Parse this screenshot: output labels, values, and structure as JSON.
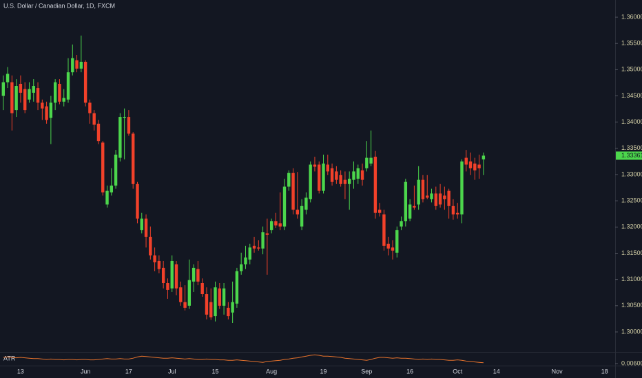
{
  "chart_data": [
    {
      "type": "candlestick",
      "title": "U.S. Dollar / Canadian Dollar, 1D, FXCM",
      "up_color": "#4cd64c",
      "down_color": "#f2412a",
      "grid": false,
      "ylim": [
        1.29646,
        1.36328
      ],
      "yticks": [
        {
          "value": 1.3,
          "label": "1.30000"
        },
        {
          "value": 1.305,
          "label": "1.30500"
        },
        {
          "value": 1.31,
          "label": "1.31000"
        },
        {
          "value": 1.315,
          "label": "1.31500"
        },
        {
          "value": 1.32,
          "label": "1.32000"
        },
        {
          "value": 1.325,
          "label": "1.32500"
        },
        {
          "value": 1.33,
          "label": "1.33000"
        },
        {
          "value": 1.335,
          "label": "1.33500"
        },
        {
          "value": 1.34,
          "label": "1.34000"
        },
        {
          "value": 1.345,
          "label": "1.34500"
        },
        {
          "value": 1.35,
          "label": "1.35000"
        },
        {
          "value": 1.355,
          "label": "1.35500"
        },
        {
          "value": 1.36,
          "label": "1.36000"
        }
      ],
      "categories": [
        null,
        null,
        null,
        null,
        "13",
        null,
        null,
        null,
        null,
        null,
        null,
        null,
        null,
        null,
        null,
        null,
        null,
        null,
        null,
        "Jun",
        null,
        null,
        null,
        null,
        null,
        null,
        null,
        null,
        null,
        "17",
        null,
        null,
        null,
        null,
        null,
        null,
        null,
        null,
        null,
        "Jul",
        null,
        null,
        null,
        null,
        null,
        null,
        null,
        null,
        null,
        "15",
        null,
        null,
        null,
        null,
        null,
        null,
        null,
        null,
        null,
        null,
        null,
        null,
        "Aug",
        null,
        null,
        null,
        null,
        null,
        null,
        null,
        null,
        null,
        null,
        null,
        "19",
        null,
        null,
        null,
        null,
        null,
        null,
        null,
        null,
        null,
        "Sep",
        null,
        null,
        null,
        null,
        null,
        null,
        null,
        null,
        null,
        "16",
        null,
        null,
        null,
        null,
        null,
        null,
        null,
        null,
        null,
        null,
        "Oct",
        null,
        null,
        null,
        null,
        null,
        null,
        null,
        null,
        "14",
        null,
        null,
        null,
        null,
        null,
        null,
        null,
        null,
        null,
        null,
        null,
        null,
        null,
        "Nov",
        null,
        null,
        null,
        null,
        null,
        null,
        null,
        null,
        null,
        null,
        "18",
        null,
        null
      ],
      "open": [
        1.345,
        1.3476,
        1.3476,
        1.3423,
        1.3473,
        1.3463,
        1.3443,
        1.3456,
        1.3465,
        1.3437,
        1.343,
        1.3408,
        1.3437,
        1.3473,
        1.3439,
        1.3443,
        1.3495,
        1.3518,
        1.3502,
        1.3515,
        1.3437,
        1.3417,
        1.3397,
        1.3361,
        1.3243,
        1.3266,
        1.3279,
        1.3332,
        1.3408,
        1.341,
        1.3378,
        1.3282,
        1.3194,
        1.3216,
        1.3181,
        1.3146,
        1.3135,
        1.3122,
        1.3093,
        1.3083,
        1.3129,
        1.3085,
        1.3057,
        1.305,
        1.3096,
        1.312,
        1.3093,
        1.3072,
        1.3057,
        1.303,
        1.3083,
        1.305,
        1.3046,
        1.3037,
        1.3054,
        1.3116,
        1.3129,
        1.3138,
        1.3164,
        1.3161,
        1.3159,
        1.3188,
        1.3194,
        1.3211,
        1.3207,
        1.3201,
        1.3277,
        1.3303,
        1.3233,
        1.3201,
        1.3233,
        1.3253,
        1.3319,
        1.3319,
        1.3269,
        1.3319,
        1.3312,
        1.3306,
        1.3299,
        1.329,
        1.3282,
        1.329,
        1.3292,
        1.3308,
        1.3312,
        1.3321,
        1.3334,
        1.3233,
        1.3224,
        1.3168,
        1.3161,
        1.3151,
        1.3201,
        1.3211,
        1.3216,
        1.324,
        1.3243,
        1.329,
        1.326,
        1.3253,
        1.3264,
        1.3264,
        1.326,
        1.3269,
        1.324,
        1.3227,
        1.3224,
        1.3332,
        1.3325,
        1.3321,
        1.3319,
        1.3329,
        null,
        null,
        null,
        null,
        null,
        null,
        null,
        null,
        null,
        null,
        null,
        null,
        null,
        null,
        null,
        null,
        null,
        null,
        null,
        null,
        null,
        null,
        null,
        null,
        null,
        null,
        null,
        null,
        null,
        null
      ],
      "high": [
        1.3489,
        1.3505,
        1.3489,
        1.3482,
        1.3489,
        1.3476,
        1.3476,
        1.3482,
        1.3476,
        1.3443,
        1.3439,
        1.345,
        1.3482,
        1.3482,
        1.3463,
        1.3522,
        1.3548,
        1.3528,
        1.3565,
        1.3518,
        1.3443,
        1.3423,
        1.3404,
        1.3364,
        1.3279,
        1.3312,
        1.3347,
        1.3417,
        1.3426,
        1.3423,
        1.3381,
        1.3286,
        1.3227,
        1.3224,
        1.3201,
        1.3161,
        1.3146,
        1.3135,
        1.3102,
        1.3146,
        1.3135,
        1.3096,
        1.3089,
        1.3138,
        1.3129,
        1.3135,
        1.3102,
        1.3085,
        1.3083,
        1.3096,
        1.3093,
        1.3093,
        1.3057,
        1.3096,
        1.3122,
        1.3151,
        1.3164,
        1.3168,
        1.3181,
        1.3175,
        1.3201,
        1.3216,
        1.3216,
        1.3227,
        1.3266,
        1.3292,
        1.3308,
        1.3312,
        1.3305,
        1.3253,
        1.3266,
        1.3325,
        1.3334,
        1.3325,
        1.3338,
        1.3338,
        1.3321,
        1.3316,
        1.3308,
        1.3306,
        1.3306,
        1.3325,
        1.3319,
        1.3321,
        1.3364,
        1.3384,
        1.3345,
        1.3246,
        1.3233,
        1.3181,
        1.3175,
        1.3201,
        1.322,
        1.3292,
        1.3253,
        1.3279,
        1.3316,
        1.3299,
        1.3299,
        1.3273,
        1.3277,
        1.3282,
        1.3277,
        1.3273,
        1.3253,
        1.3246,
        1.3329,
        1.3347,
        1.3342,
        1.3332,
        1.3338,
        1.3342,
        null,
        null,
        null,
        null,
        null,
        null,
        null,
        null,
        null,
        null,
        null,
        null,
        null,
        null,
        null,
        null,
        null,
        null,
        null,
        null,
        null,
        null,
        null,
        null,
        null,
        null,
        null,
        null,
        null,
        null
      ],
      "low": [
        1.3423,
        1.3465,
        1.3384,
        1.341,
        1.3437,
        1.3417,
        1.3437,
        1.3439,
        1.3423,
        1.3404,
        1.3397,
        1.3358,
        1.3423,
        1.3434,
        1.343,
        1.3437,
        1.3489,
        1.3495,
        1.3495,
        1.343,
        1.3397,
        1.3384,
        1.3358,
        1.326,
        1.3237,
        1.326,
        1.3273,
        1.3325,
        1.3329,
        1.3374,
        1.3273,
        1.3207,
        1.3188,
        1.3161,
        1.3138,
        1.3116,
        1.3112,
        1.3083,
        1.3063,
        1.3076,
        1.307,
        1.305,
        1.3041,
        1.3044,
        1.3076,
        1.3089,
        1.3067,
        1.3024,
        1.3023,
        1.302,
        1.3044,
        1.3033,
        1.3024,
        1.3017,
        1.3046,
        1.3109,
        1.312,
        1.3129,
        1.3151,
        1.3155,
        1.3148,
        1.3109,
        1.3188,
        1.3198,
        1.3194,
        1.3194,
        1.3269,
        1.3224,
        1.3216,
        1.3194,
        1.3224,
        1.3247,
        1.3306,
        1.3264,
        1.3264,
        1.3299,
        1.3279,
        1.3282,
        1.3277,
        1.3253,
        1.3233,
        1.3273,
        1.3282,
        1.3279,
        1.3306,
        1.3316,
        1.3216,
        1.322,
        1.3155,
        1.3146,
        1.3138,
        1.3142,
        1.3194,
        1.3201,
        1.3211,
        1.3233,
        1.3233,
        1.3247,
        1.3253,
        1.3247,
        1.3233,
        1.3237,
        1.3233,
        1.3216,
        1.3214,
        1.3216,
        1.3207,
        1.3306,
        1.3299,
        1.329,
        1.3292,
        1.3299,
        null,
        null,
        null,
        null,
        null,
        null,
        null,
        null,
        null,
        null,
        null,
        null,
        null,
        null,
        null,
        null,
        null,
        null,
        null,
        null,
        null,
        null,
        null,
        null,
        null,
        null,
        null,
        null,
        null,
        null
      ],
      "close": [
        1.3476,
        1.3492,
        1.3417,
        1.3469,
        1.3456,
        1.3423,
        1.3463,
        1.3469,
        1.3437,
        1.3426,
        1.3404,
        1.3437,
        1.3476,
        1.3439,
        1.3446,
        1.3495,
        1.3522,
        1.3502,
        1.3515,
        1.3437,
        1.3417,
        1.3395,
        1.3364,
        1.3266,
        1.3269,
        1.3279,
        1.3338,
        1.341,
        1.341,
        1.3378,
        1.3282,
        1.3216,
        1.3216,
        1.3181,
        1.3146,
        1.3133,
        1.312,
        1.3093,
        1.308,
        1.3135,
        1.3083,
        1.3057,
        1.3046,
        1.3099,
        1.3122,
        1.3096,
        1.3072,
        1.3033,
        1.3028,
        1.3085,
        1.305,
        1.3083,
        1.303,
        1.3057,
        1.3116,
        1.3129,
        1.3142,
        1.3161,
        1.3159,
        1.3159,
        1.319,
        1.3185,
        1.3211,
        1.3203,
        1.3201,
        1.3277,
        1.3303,
        1.3233,
        1.3224,
        1.324,
        1.3256,
        1.3319,
        1.3315,
        1.3269,
        1.3321,
        1.3306,
        1.3286,
        1.329,
        1.3282,
        1.3282,
        1.3292,
        1.3306,
        1.3312,
        1.329,
        1.3332,
        1.3332,
        1.3227,
        1.3227,
        1.3164,
        1.3159,
        1.3155,
        1.3194,
        1.3211,
        1.3286,
        1.3243,
        1.3237,
        1.329,
        1.3253,
        1.3256,
        1.3264,
        1.324,
        1.3243,
        1.3253,
        1.324,
        1.3224,
        1.3224,
        1.3325,
        1.3319,
        1.3312,
        1.3308,
        1.3312,
        1.33361,
        null,
        null,
        null,
        null,
        null,
        null,
        null,
        null,
        null,
        null,
        null,
        null,
        null,
        null,
        null,
        null,
        null,
        null,
        null,
        null,
        null,
        null,
        null,
        null,
        null,
        null,
        null,
        null,
        null,
        null
      ]
    },
    {
      "type": "line",
      "title": "ATR",
      "color": "#e8732c",
      "ylim": [
        0.0055,
        0.0085
      ],
      "yticks": [
        {
          "value": 0.006,
          "label": "0.00600"
        }
      ],
      "values": [
        0.0075,
        0.0076,
        0.0075,
        0.0074,
        0.0075,
        0.0074,
        0.0073,
        0.0072,
        0.0072,
        0.0071,
        0.007,
        0.0071,
        0.007,
        0.007,
        0.0069,
        0.007,
        0.007,
        0.0069,
        0.007,
        0.007,
        0.0069,
        0.0069,
        0.007,
        0.0071,
        0.0072,
        0.0071,
        0.0071,
        0.0072,
        0.0071,
        0.0071,
        0.0073,
        0.0076,
        0.0078,
        0.0077,
        0.0076,
        0.0075,
        0.0074,
        0.0073,
        0.0073,
        0.0074,
        0.0073,
        0.0072,
        0.0071,
        0.0072,
        0.0071,
        0.007,
        0.007,
        0.0071,
        0.007,
        0.007,
        0.0069,
        0.0069,
        0.0068,
        0.0068,
        0.0069,
        0.0068,
        0.0067,
        0.0066,
        0.0065,
        0.0064,
        0.0063,
        0.0065,
        0.0066,
        0.0067,
        0.0068,
        0.007,
        0.0071,
        0.0073,
        0.0074,
        0.0076,
        0.0078,
        0.008,
        0.0081,
        0.008,
        0.0078,
        0.0078,
        0.0077,
        0.0076,
        0.0075,
        0.0073,
        0.0072,
        0.0071,
        0.007,
        0.0069,
        0.0068,
        0.007,
        0.0073,
        0.0075,
        0.0075,
        0.0074,
        0.0073,
        0.0074,
        0.0073,
        0.0073,
        0.0072,
        0.0071,
        0.007,
        0.0071,
        0.007,
        0.0071,
        0.007,
        0.007,
        0.0069,
        0.0068,
        0.0068,
        0.0069,
        0.0068,
        0.0066,
        0.0065,
        0.0064,
        0.0063,
        0.0062,
        null,
        null,
        null,
        null,
        null,
        null,
        null,
        null,
        null,
        null,
        null,
        null,
        null,
        null,
        null,
        null,
        null,
        null,
        null,
        null,
        null,
        null,
        null,
        null,
        null,
        null,
        null,
        null,
        null,
        null
      ]
    }
  ]
}
